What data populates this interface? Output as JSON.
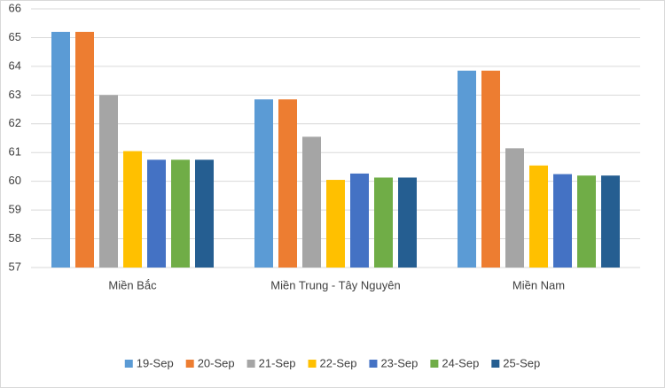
{
  "chart_data": {
    "type": "bar",
    "categories": [
      "Miền Bắc",
      "Miền Trung - Tây Nguyên",
      "Miền Nam"
    ],
    "series": [
      {
        "name": "19-Sep",
        "color": "#5b9bd5",
        "values": [
          65.2,
          62.85,
          63.85
        ]
      },
      {
        "name": "20-Sep",
        "color": "#ed7d31",
        "values": [
          65.2,
          62.85,
          63.85
        ]
      },
      {
        "name": "21-Sep",
        "color": "#a5a5a5",
        "values": [
          63.0,
          61.55,
          61.15
        ]
      },
      {
        "name": "22-Sep",
        "color": "#ffc000",
        "values": [
          61.05,
          60.05,
          60.55
        ]
      },
      {
        "name": "23-Sep",
        "color": "#4472c4",
        "values": [
          60.75,
          60.27,
          60.25
        ]
      },
      {
        "name": "24-Sep",
        "color": "#70ad47",
        "values": [
          60.75,
          60.13,
          60.2
        ]
      },
      {
        "name": "25-Sep",
        "color": "#255e91",
        "values": [
          60.75,
          60.13,
          60.2
        ]
      }
    ],
    "ylim": [
      57,
      66
    ],
    "yticks": [
      57,
      58,
      59,
      60,
      61,
      62,
      63,
      64,
      65,
      66
    ],
    "grid": true,
    "legend": "bottom"
  }
}
